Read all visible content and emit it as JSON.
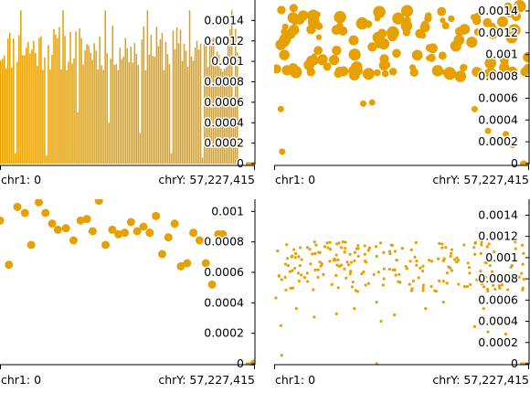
{
  "chart_data": [
    {
      "type": "bar",
      "color": "#e6a000",
      "ylim": [
        0,
        0.0016
      ],
      "ytick_labels": [
        "0.0014",
        "0.0012",
        "0.001",
        "0.0008",
        "0.0006",
        "0.0004",
        "0.0002",
        "0"
      ],
      "ytick_values": [
        0.0014,
        0.0012,
        0.001,
        0.0008,
        0.0006,
        0.0004,
        0.0002,
        0
      ],
      "xlim": [
        0,
        57227415
      ],
      "xtick_labels": [
        "chr1: 0",
        "chrY: 57,227,415"
      ],
      "seed": 11,
      "count": 130,
      "value_range": [
        0.0009,
        0.00135
      ],
      "low_values": [
        0.0001,
        8e-05,
        0.0005,
        0.0004,
        0.0003,
        0.0001,
        6e-05,
        0.0006
      ]
    },
    {
      "type": "scatter",
      "color": "#e6a000",
      "ylim": [
        0,
        0.0015
      ],
      "ytick_labels": [
        "0.0014",
        "0.0012",
        "0.001",
        "0.0008",
        "0.0006",
        "0.0004",
        "0.0002",
        "0"
      ],
      "ytick_values": [
        0.0014,
        0.0012,
        0.001,
        0.0008,
        0.0006,
        0.0004,
        0.0002,
        0
      ],
      "xlim": [
        0,
        57227415
      ],
      "xtick_labels": [
        "chr1: 0",
        "chrY: 57,227,415"
      ],
      "seed": 23,
      "count": 140,
      "value_range": [
        0.0008,
        0.00145
      ],
      "size_range": [
        3,
        7
      ],
      "outliers": [
        {
          "x": 1500000,
          "y": 0.0005
        },
        {
          "x": 1800000,
          "y": 0.00011
        },
        {
          "x": 20000000,
          "y": 0.00055
        },
        {
          "x": 22000000,
          "y": 0.00056
        },
        {
          "x": 45000000,
          "y": 0.0005
        },
        {
          "x": 48000000,
          "y": 0.0003
        },
        {
          "x": 52000000,
          "y": 0.00027
        },
        {
          "x": 53500000,
          "y": 0.00017
        },
        {
          "x": 56000000,
          "y": 0.0
        }
      ]
    },
    {
      "type": "scatter",
      "color": "#e6a000",
      "ylim": [
        0,
        0.00108
      ],
      "ytick_labels": [
        "0.001",
        "0.0008",
        "0.0006",
        "0.0004",
        "0.0002",
        "0"
      ],
      "ytick_values": [
        0.001,
        0.0008,
        0.0006,
        0.0004,
        0.0002,
        0
      ],
      "xlim": [
        0,
        57227415
      ],
      "xtick_labels": [
        "chr1: 0",
        "chrY: 57,227,415"
      ],
      "points": [
        {
          "x": 0,
          "y": 0.00094
        },
        {
          "x": 2000000,
          "y": 0.00065
        },
        {
          "x": 3900000,
          "y": 0.00103
        },
        {
          "x": 5600000,
          "y": 0.00099
        },
        {
          "x": 7000000,
          "y": 0.00078
        },
        {
          "x": 8700000,
          "y": 0.00106
        },
        {
          "x": 10200000,
          "y": 0.00099
        },
        {
          "x": 11700000,
          "y": 0.00092
        },
        {
          "x": 13000000,
          "y": 0.00088
        },
        {
          "x": 14800000,
          "y": 0.00089
        },
        {
          "x": 16500000,
          "y": 0.00081
        },
        {
          "x": 18100000,
          "y": 0.00094
        },
        {
          "x": 19500000,
          "y": 0.00095
        },
        {
          "x": 20800000,
          "y": 0.00087
        },
        {
          "x": 22200000,
          "y": 0.00107
        },
        {
          "x": 23700000,
          "y": 0.00078
        },
        {
          "x": 25200000,
          "y": 0.00088
        },
        {
          "x": 26600000,
          "y": 0.00085
        },
        {
          "x": 28000000,
          "y": 0.00086
        },
        {
          "x": 29400000,
          "y": 0.00093
        },
        {
          "x": 30800000,
          "y": 0.00087
        },
        {
          "x": 32200000,
          "y": 0.0009
        },
        {
          "x": 33600000,
          "y": 0.00086
        },
        {
          "x": 35000000,
          "y": 0.00097
        },
        {
          "x": 36400000,
          "y": 0.00072
        },
        {
          "x": 37800000,
          "y": 0.00083
        },
        {
          "x": 39200000,
          "y": 0.00092
        },
        {
          "x": 40600000,
          "y": 0.00064
        },
        {
          "x": 42000000,
          "y": 0.00066
        },
        {
          "x": 43400000,
          "y": 0.00086
        },
        {
          "x": 44800000,
          "y": 0.00081
        },
        {
          "x": 46200000,
          "y": 0.00066
        },
        {
          "x": 47600000,
          "y": 0.00052
        },
        {
          "x": 49000000,
          "y": 0.00085
        },
        {
          "x": 50000000,
          "y": 0.00085
        },
        {
          "x": 57000000,
          "y": 0.0
        }
      ],
      "dot_radius": 4.5
    },
    {
      "type": "scatter",
      "color": "#e6a000",
      "ylim": [
        0,
        0.00155
      ],
      "ytick_labels": [
        "0.0014",
        "0.0012",
        "0.001",
        "0.0008",
        "0.0006",
        "0.0004",
        "0.0002",
        "0"
      ],
      "ytick_values": [
        0.0014,
        0.0012,
        0.001,
        0.0008,
        0.0006,
        0.0004,
        0.0002,
        0
      ],
      "xlim": [
        0,
        57227415
      ],
      "xtick_labels": [
        "chr1: 0",
        "chrY: 57,227,415"
      ],
      "seed": 37,
      "count": 230,
      "value_range": [
        0.00068,
        0.00115
      ],
      "dot_radius": 1.6,
      "outliers": [
        {
          "x": 400000,
          "y": 0.00062
        },
        {
          "x": 1500000,
          "y": 0.00036
        },
        {
          "x": 1700000,
          "y": 8e-05
        },
        {
          "x": 5000000,
          "y": 0.00052
        },
        {
          "x": 9000000,
          "y": 0.00044
        },
        {
          "x": 14000000,
          "y": 0.00047
        },
        {
          "x": 18000000,
          "y": 0.00052
        },
        {
          "x": 23000000,
          "y": 0.00058
        },
        {
          "x": 24000000,
          "y": 0.0004
        },
        {
          "x": 27000000,
          "y": 0.00046
        },
        {
          "x": 34000000,
          "y": 0.00052
        },
        {
          "x": 38000000,
          "y": 0.00058
        },
        {
          "x": 45000000,
          "y": 0.00035
        },
        {
          "x": 47000000,
          "y": 0.00052
        },
        {
          "x": 48000000,
          "y": 0.0003
        },
        {
          "x": 52000000,
          "y": 0.00028
        },
        {
          "x": 53500000,
          "y": 0.00017
        },
        {
          "x": 56000000,
          "y": 0.0
        },
        {
          "x": 23000000,
          "y": 0.0
        }
      ]
    }
  ]
}
